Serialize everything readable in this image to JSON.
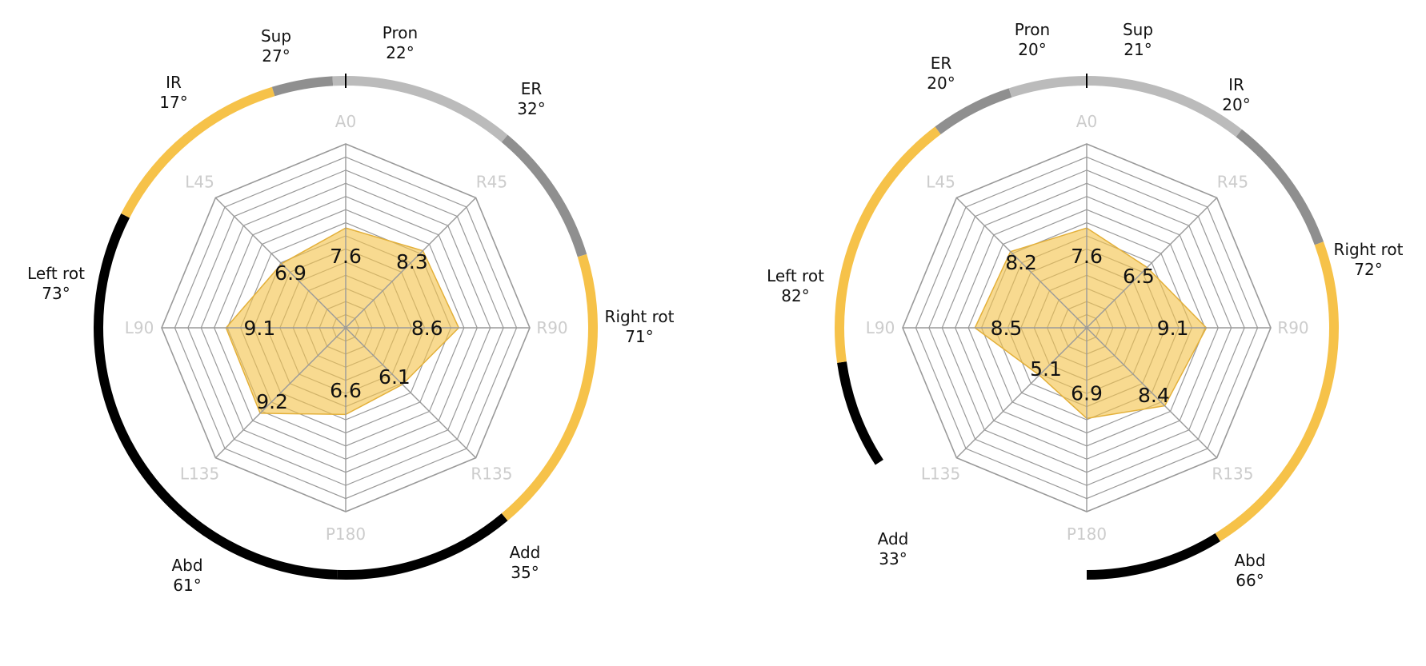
{
  "colors": {
    "grid": "#9a9a9a",
    "axis_label": "#cccccc",
    "polygon_fill": "#f4c34c",
    "polygon_stroke": "#e3b03a",
    "band_light": "#bbbbbb",
    "band_mid": "#8f8f8f",
    "band_yellow": "#f6c249",
    "band_black": "#000000",
    "text": "#111111"
  },
  "chart_data": [
    {
      "type": "radar",
      "axes": [
        "A0",
        "R45",
        "R90",
        "R135",
        "P180",
        "L135",
        "L90",
        "L45"
      ],
      "rlim": [
        0,
        14
      ],
      "ring_count": 14,
      "values": [
        7.6,
        8.3,
        8.6,
        6.1,
        6.6,
        9.2,
        9.1,
        6.9
      ],
      "value_labels": [
        "7.6",
        "8.3",
        "8.6",
        "6.1",
        "6.6",
        "9.2",
        "9.1",
        "6.9"
      ],
      "arcs": [
        {
          "name": "Pron",
          "degrees": "22°",
          "color": "band_light",
          "value": 22
        },
        {
          "name": "ER",
          "degrees": "32°",
          "color": "band_mid",
          "value": 32
        },
        {
          "name": "Right rot",
          "degrees": "71°",
          "color": "band_yellow",
          "value": 71
        },
        {
          "name": "Add",
          "degrees": "35°",
          "color": "band_black",
          "value": 35
        },
        {
          "name": "Abd",
          "degrees": "61°",
          "color": "band_black",
          "value": 61
        },
        {
          "name": "Left rot",
          "degrees": "73°",
          "color": "band_yellow",
          "value": 73
        },
        {
          "name": "IR",
          "degrees": "17°",
          "color": "band_mid",
          "value": 17
        },
        {
          "name": "Sup",
          "degrees": "27°",
          "color": "band_light",
          "value": 27
        }
      ]
    },
    {
      "type": "radar",
      "axes": [
        "A0",
        "R45",
        "R90",
        "R135",
        "P180",
        "L135",
        "L90",
        "L45"
      ],
      "rlim": [
        0,
        14
      ],
      "ring_count": 14,
      "values": [
        7.6,
        6.5,
        9.1,
        8.4,
        6.9,
        5.1,
        8.5,
        8.2
      ],
      "value_labels": [
        "7.6",
        "6.5",
        "9.1",
        "8.4",
        "6.9",
        "5.1",
        "8.5",
        "8.2"
      ],
      "arcs": [
        {
          "name": "Sup",
          "degrees": "21°",
          "color": "band_light",
          "value": 21
        },
        {
          "name": "IR",
          "degrees": "20°",
          "color": "band_mid",
          "value": 20
        },
        {
          "name": "Right rot",
          "degrees": "72°",
          "color": "band_yellow",
          "value": 72
        },
        {
          "name": "Abd",
          "degrees": "66°",
          "color": "band_black",
          "value": 66
        },
        {
          "name": "Add",
          "degrees": "33°",
          "color": "band_black",
          "value": 33
        },
        {
          "name": "Left rot",
          "degrees": "82°",
          "color": "band_yellow",
          "value": 82
        },
        {
          "name": "ER",
          "degrees": "20°",
          "color": "band_mid",
          "value": 20
        },
        {
          "name": "Pron",
          "degrees": "20°",
          "color": "band_light",
          "value": 20
        }
      ]
    }
  ]
}
